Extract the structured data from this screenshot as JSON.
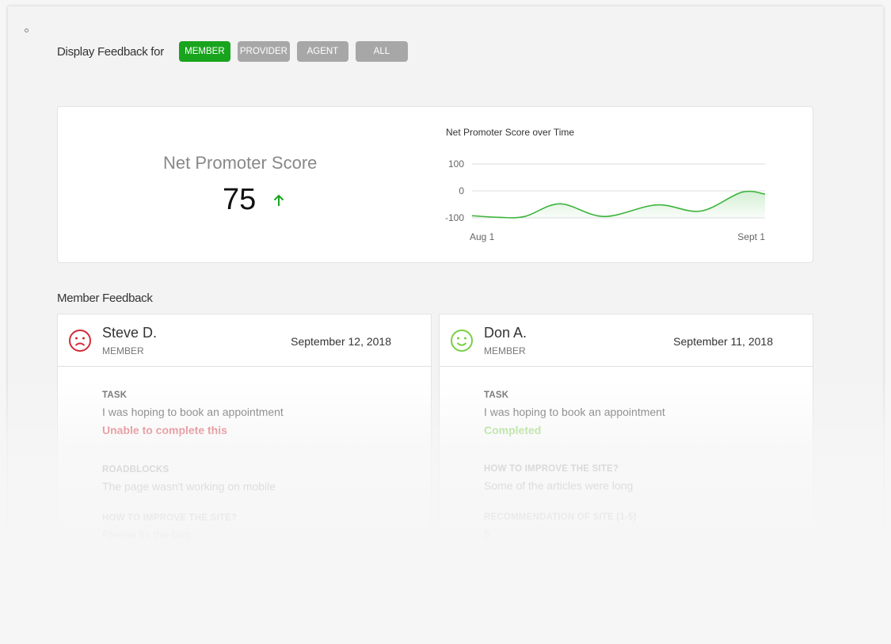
{
  "filter": {
    "label": "Display Feedback for",
    "options": [
      "MEMBER",
      "PROVIDER",
      "AGENT",
      "ALL"
    ],
    "selected": "MEMBER"
  },
  "nps": {
    "title": "Net Promoter Score",
    "value": "75",
    "trend_icon": "arrow-up-icon"
  },
  "chart_data": {
    "type": "area",
    "title": "Net Promoter Score  over Time",
    "y_ticks": [
      "100",
      "0",
      "-100"
    ],
    "ylim": [
      -100,
      100
    ],
    "x_labels": [
      "Aug 1",
      "Sept 1"
    ],
    "x": [
      0,
      0.09,
      0.18,
      0.3,
      0.45,
      0.63,
      0.78,
      0.92,
      1
    ],
    "y": [
      -92,
      -98,
      -95,
      -48,
      -95,
      -52,
      -75,
      -5,
      -12
    ],
    "grid": true,
    "color": "#3cb53c"
  },
  "section": {
    "title": "Member Feedback"
  },
  "feedback": [
    {
      "name": "Steve D.",
      "role": "MEMBER",
      "date": "September 12, 2018",
      "sentiment_icon": "sad-face-icon",
      "sentiment_color": "#d52b38",
      "task_label": "TASK",
      "task_text": "I was hoping to book an appointment",
      "status": "Unable to complete this",
      "status_color": "#d52b38",
      "fields": [
        {
          "label": "ROADBLOCKS",
          "text": "The page wasn't working on mobile"
        },
        {
          "label": "HOW TO IMPROVE THE SITE?",
          "text": "Please fix the bug"
        }
      ]
    },
    {
      "name": "Don A.",
      "role": "MEMBER",
      "date": "September 11, 2018",
      "sentiment_icon": "happy-face-icon",
      "sentiment_color": "#78d047",
      "task_label": "TASK",
      "task_text": "I was hoping to book an appointment",
      "status": "Completed",
      "status_color": "#78d047",
      "fields": [
        {
          "label": "HOW TO IMPROVE THE SITE?",
          "text": "Some of the articles were long"
        },
        {
          "label": "RECOMMENDATION OF SITE (1-5)",
          "text": "5"
        }
      ]
    }
  ]
}
